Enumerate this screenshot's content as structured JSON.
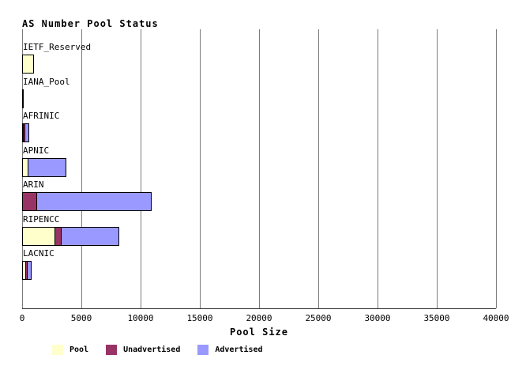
{
  "chart_data": {
    "type": "bar",
    "orientation": "horizontal",
    "stacked": true,
    "title": "AS Number Pool Status",
    "xlabel": "Pool Size",
    "ylabel": "",
    "xlim": [
      0,
      40000
    ],
    "xticks": [
      0,
      5000,
      10000,
      15000,
      20000,
      25000,
      30000,
      35000,
      40000
    ],
    "grid": true,
    "legend_position": "bottom",
    "categories": [
      "IETF_Reserved",
      "IANA_Pool",
      "AFRINIC",
      "APNIC",
      "ARIN",
      "RIPENCC",
      "LACNIC"
    ],
    "series": [
      {
        "name": "Pool",
        "color": "#FFFFCC",
        "values": [
          1000,
          30,
          150,
          500,
          0,
          2800,
          300
        ]
      },
      {
        "name": "Unadvertised",
        "color": "#993366",
        "values": [
          0,
          0,
          200,
          0,
          1250,
          600,
          200
        ]
      },
      {
        "name": "Advertised",
        "color": "#9999FF",
        "values": [
          0,
          0,
          400,
          3300,
          9750,
          4900,
          450
        ]
      }
    ],
    "colors": {
      "gridline": "#7b7b7b",
      "axis": "#2a2a2a",
      "bar_border": "#000000",
      "background": "#ffffff",
      "text": "#000000"
    }
  }
}
